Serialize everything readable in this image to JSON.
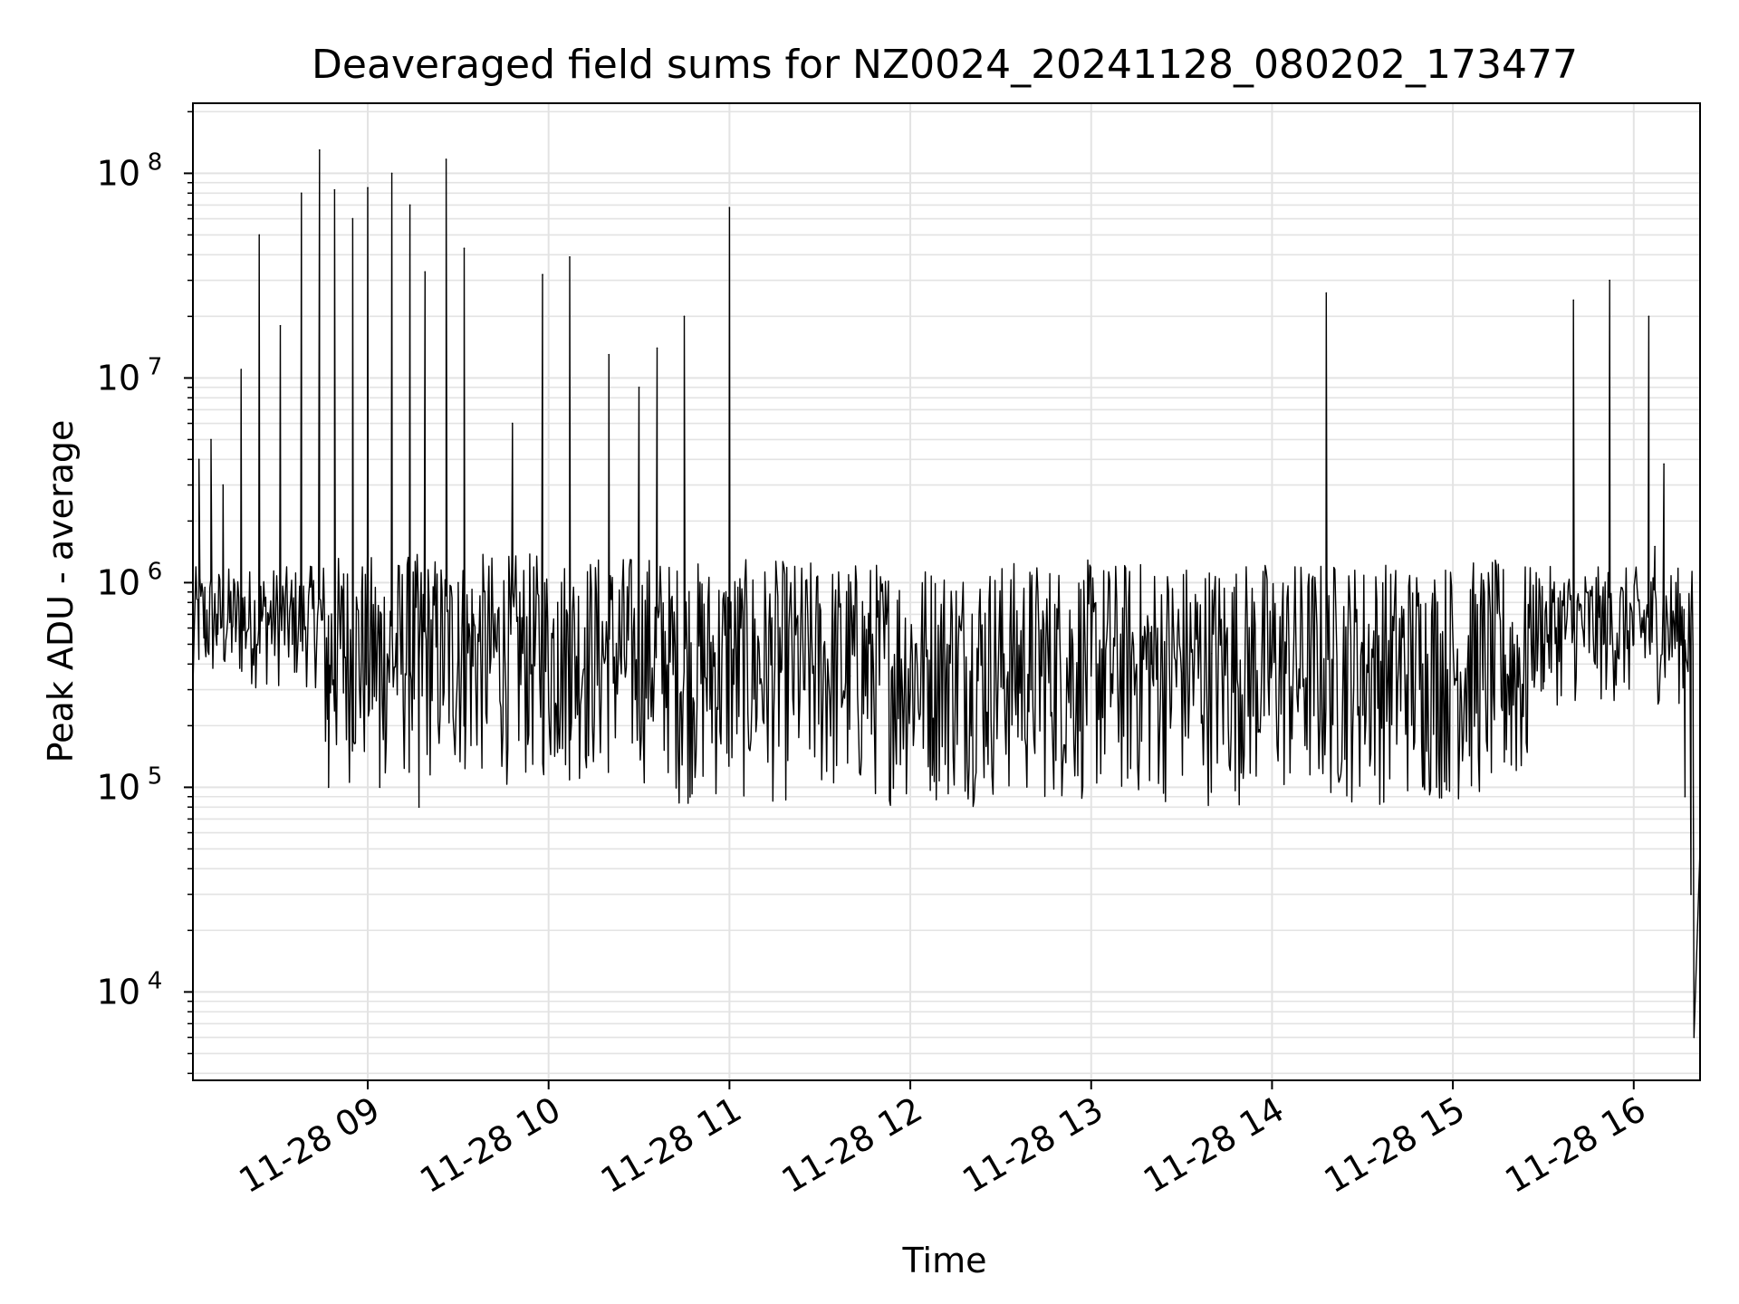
{
  "chart_data": {
    "type": "line",
    "title": "Deaveraged field sums for NZ0024_20241128_080202_173477",
    "xlabel": "Time",
    "ylabel": "Peak ADU - average",
    "yscale": "log",
    "ylim": [
      3700,
      220000000
    ],
    "xlim": [
      "2024-11-28 08:02",
      "2024-11-28 16:22"
    ],
    "grid": true,
    "line_color": "#000000",
    "x_ticks": [
      "11-28 09",
      "11-28 10",
      "11-28 11",
      "11-28 12",
      "11-28 13",
      "11-28 14",
      "11-28 15",
      "11-28 16"
    ],
    "y_ticks": [
      {
        "base": "10",
        "exp": "4",
        "value": 10000
      },
      {
        "base": "10",
        "exp": "5",
        "value": 100000
      },
      {
        "base": "10",
        "exp": "6",
        "value": 1000000
      },
      {
        "base": "10",
        "exp": "7",
        "value": 10000000
      },
      {
        "base": "10",
        "exp": "8",
        "value": 100000000
      }
    ],
    "series": [
      {
        "x": [
          "2024-11-28 08:02",
          "2024-11-28 08:04",
          "2024-11-28 08:06",
          "2024-11-28 08:08",
          "2024-11-28 08:10",
          "2024-11-28 08:12",
          "2024-11-28 08:15",
          "2024-11-28 08:18",
          "2024-11-28 08:21",
          "2024-11-28 08:24",
          "2024-11-28 08:27",
          "2024-11-28 08:31",
          "2024-11-28 08:35",
          "2024-11-28 08:38",
          "2024-11-28 08:41",
          "2024-11-28 08:44",
          "2024-11-28 08:47",
          "2024-11-28 08:49",
          "2024-11-28 08:52",
          "2024-11-28 08:55",
          "2024-11-28 08:58",
          "2024-11-28 09:00",
          "2024-11-28 09:04",
          "2024-11-28 09:08",
          "2024-11-28 09:10",
          "2024-11-28 09:14",
          "2024-11-28 09:17",
          "2024-11-28 09:19",
          "2024-11-28 09:22",
          "2024-11-28 09:26",
          "2024-11-28 09:30",
          "2024-11-28 09:32",
          "2024-11-28 09:35",
          "2024-11-28 09:40",
          "2024-11-28 09:48",
          "2024-11-28 09:58",
          "2024-11-28 10:03",
          "2024-11-28 10:07",
          "2024-11-28 10:12",
          "2024-11-28 10:20",
          "2024-11-28 10:25",
          "2024-11-28 10:30",
          "2024-11-28 10:36",
          "2024-11-28 10:45",
          "2024-11-28 10:55",
          "2024-11-28 11:00",
          "2024-11-28 11:10",
          "2024-11-28 11:25",
          "2024-11-28 11:40",
          "2024-11-28 12:00",
          "2024-11-28 12:20",
          "2024-11-28 12:40",
          "2024-11-28 13:00",
          "2024-11-28 13:20",
          "2024-11-28 13:40",
          "2024-11-28 14:00",
          "2024-11-28 14:18",
          "2024-11-28 14:30",
          "2024-11-28 14:50",
          "2024-11-28 15:10",
          "2024-11-28 15:30",
          "2024-11-28 15:40",
          "2024-11-28 15:50",
          "2024-11-28 15:52",
          "2024-11-28 16:00",
          "2024-11-28 16:05",
          "2024-11-28 16:07",
          "2024-11-28 16:10",
          "2024-11-28 16:14",
          "2024-11-28 16:17",
          "2024-11-28 16:19",
          "2024-11-28 16:20",
          "2024-11-28 16:22"
        ],
        "y": [
          300000,
          4000000,
          500000,
          5000000,
          700000,
          3000000,
          600000,
          11000000,
          800000,
          50000000,
          700000,
          18000000,
          500000,
          80000000,
          1200000,
          130000000,
          100000,
          83000000,
          1100000,
          60000000,
          900000,
          85000000,
          100000,
          100000000,
          900000,
          70000000,
          80000,
          33000000,
          800000,
          117000000,
          1000000,
          43000000,
          700000,
          900000,
          6000000,
          32000000,
          800000,
          39000000,
          600000,
          13000000,
          800000,
          9000000,
          14000000,
          20000000,
          400000,
          68000000,
          400000,
          300000,
          350000,
          300000,
          250000,
          300000,
          350000,
          400000,
          450000,
          400000,
          26000000,
          500000,
          400000,
          300000,
          500000,
          24000000,
          500000,
          30000000,
          500000,
          20000000,
          1500000,
          3800000,
          1000000,
          90000,
          30000,
          6000,
          50000
        ]
      }
    ],
    "noise_band": {
      "segments": [
        {
          "from": "2024-11-28 08:02",
          "to": "2024-11-28 08:45",
          "low": 300000,
          "high": 1200000
        },
        {
          "from": "2024-11-28 08:45",
          "to": "2024-11-28 10:40",
          "low": 100000,
          "high": 1400000
        },
        {
          "from": "2024-11-28 10:40",
          "to": "2024-11-28 15:25",
          "low": 80000,
          "high": 1300000
        },
        {
          "from": "2024-11-28 15:25",
          "to": "2024-11-28 16:20",
          "low": 250000,
          "high": 1200000
        }
      ]
    }
  }
}
